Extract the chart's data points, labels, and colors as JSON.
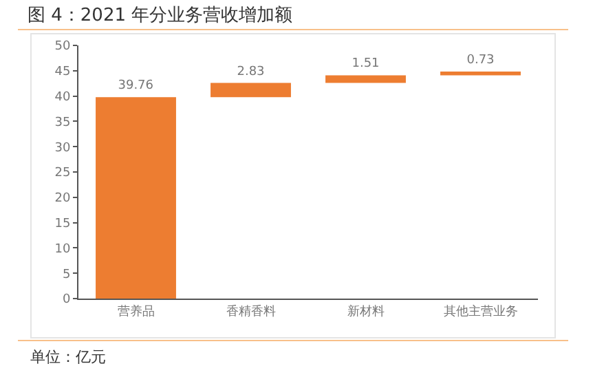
{
  "chart_data": {
    "type": "bar",
    "title": "图 4：2021 年分业务营收增加额",
    "categories": [
      "营养品",
      "香精香料",
      "新材料",
      "其他主营业务"
    ],
    "values": [
      39.76,
      2.83,
      1.51,
      0.73
    ],
    "base": [
      0,
      39.76,
      42.59,
      44.1
    ],
    "color": "#ed7d31",
    "data_labels": true,
    "ylim": [
      0,
      50
    ],
    "yticks": [
      0,
      5,
      10,
      15,
      20,
      25,
      30,
      35,
      40,
      45,
      50
    ],
    "grid": false,
    "annotations": [
      "单位：亿元"
    ]
  }
}
